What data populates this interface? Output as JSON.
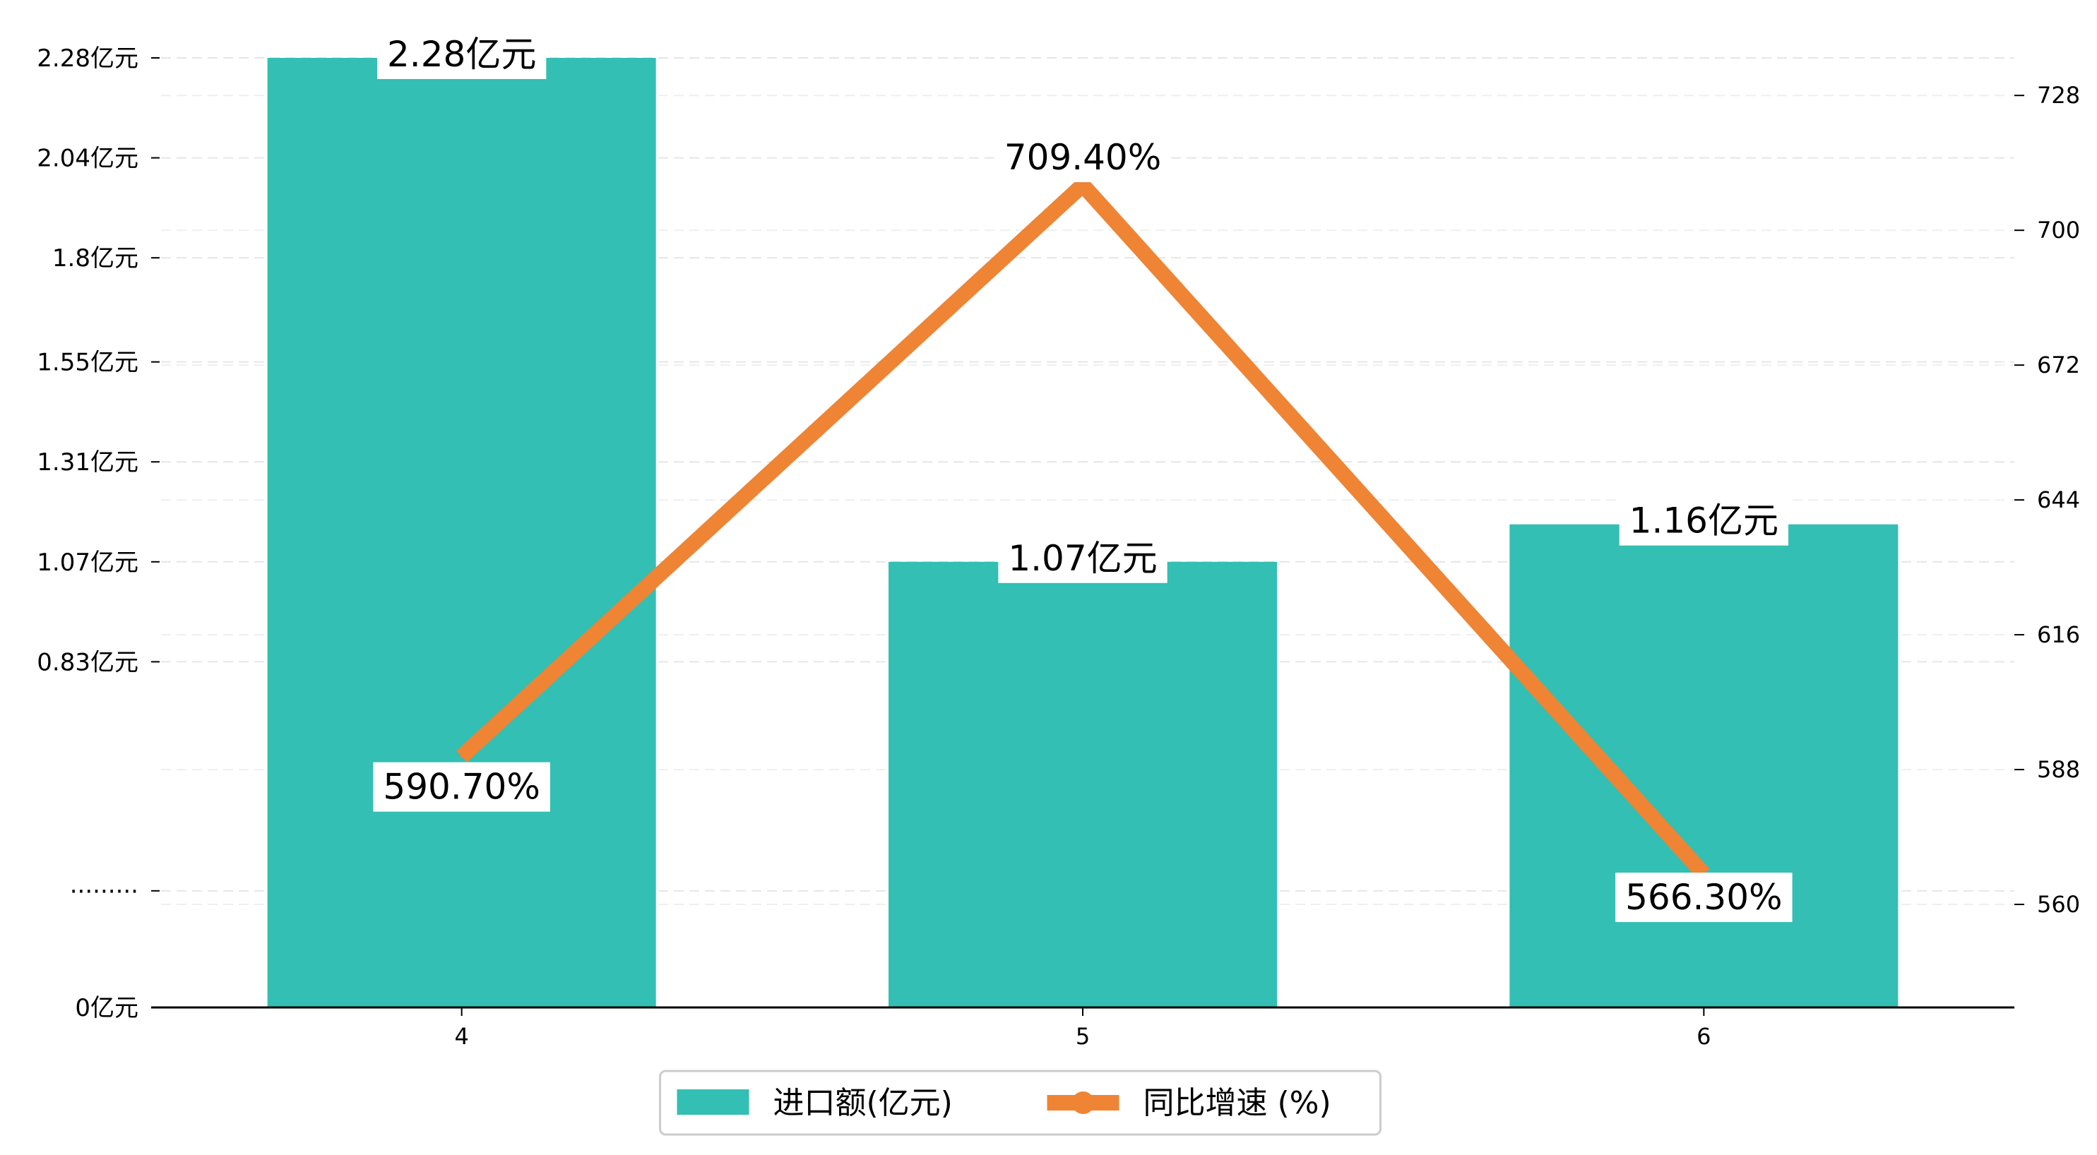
{
  "chart_data": {
    "type": "bar+line",
    "categories": [
      "4",
      "5",
      "6"
    ],
    "series": [
      {
        "name": "进口额(亿元)",
        "type": "bar",
        "axis": "left",
        "values": [
          2.28,
          1.07,
          1.16
        ],
        "labels": [
          "2.28亿元",
          "1.07亿元",
          "1.16亿元"
        ],
        "color": "#33BFB3"
      },
      {
        "name": "同比增速 (%)",
        "type": "line",
        "axis": "right",
        "values": [
          590.7,
          709.4,
          566.3
        ],
        "labels": [
          "590.70%",
          "709.40%",
          "566.30%"
        ],
        "color": "#EE8434"
      }
    ],
    "left_axis": {
      "ylim": [
        0,
        2.28
      ],
      "ticks": [
        0,
        0.28,
        0.83,
        1.07,
        1.31,
        1.55,
        1.8,
        2.04,
        2.28
      ],
      "tick_labels": [
        "0亿元",
        "·········",
        "0.83亿元",
        "1.07亿元",
        "1.31亿元",
        "1.55亿元",
        "1.8亿元",
        "2.04亿元",
        "2.28亿元"
      ]
    },
    "right_axis": {
      "ylim": [
        538.6,
        735.8
      ],
      "ticks": [
        560,
        588,
        616,
        644,
        672,
        700,
        728
      ],
      "tick_labels": [
        "560",
        "588",
        "616",
        "644",
        "672",
        "700",
        "728"
      ]
    },
    "grid": true,
    "legend": {
      "placement": "bottom-center",
      "items": [
        {
          "label": "进口额(亿元)",
          "kind": "bar",
          "color": "#33BFB3"
        },
        {
          "label": "同比增速 (%)",
          "kind": "line",
          "color": "#EE8434"
        }
      ]
    }
  }
}
